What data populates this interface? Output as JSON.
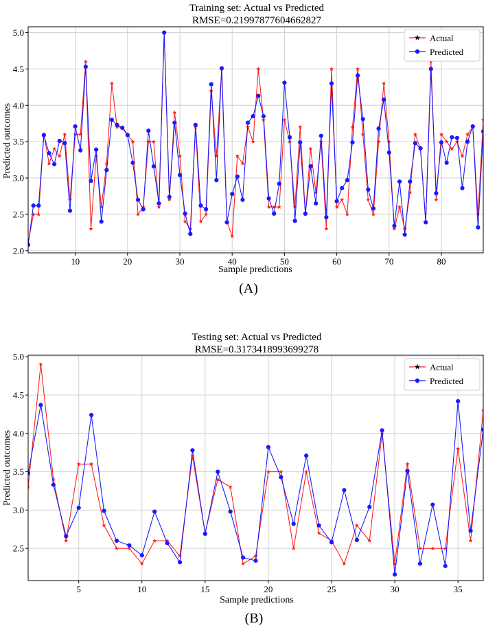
{
  "colors": {
    "actual": "#ff2020",
    "predicted": "#1a1aff",
    "grid": "#d0d0d0"
  },
  "chart_data": [
    {
      "type": "line",
      "title": "Training set: Actual vs Predicted",
      "subtitle": "RMSE=0.21997877604662827",
      "panel_label": "(A)",
      "xlabel": "Sample predictions",
      "ylabel": "Predicted outcomes",
      "xlim": [
        1,
        88
      ],
      "ylim": [
        1.97,
        5.08
      ],
      "xticks": [
        10,
        20,
        30,
        40,
        50,
        60,
        70,
        80
      ],
      "yticks": [
        2.0,
        2.5,
        3.0,
        3.5,
        4.0,
        4.5,
        5.0
      ],
      "grid": true,
      "legend_position": "top-right",
      "x": [
        1,
        2,
        3,
        4,
        5,
        6,
        7,
        8,
        9,
        10,
        11,
        12,
        13,
        14,
        15,
        16,
        17,
        18,
        19,
        20,
        21,
        22,
        23,
        24,
        25,
        26,
        27,
        28,
        29,
        30,
        31,
        32,
        33,
        34,
        35,
        36,
        37,
        38,
        39,
        40,
        41,
        42,
        43,
        44,
        45,
        46,
        47,
        48,
        49,
        50,
        51,
        52,
        53,
        54,
        55,
        56,
        57,
        58,
        59,
        60,
        61,
        62,
        63,
        64,
        65,
        66,
        67,
        68,
        69,
        70,
        71,
        72,
        73,
        74,
        75,
        76,
        77,
        78,
        79,
        80,
        81,
        82,
        83,
        84,
        85,
        86,
        87,
        88
      ],
      "series": [
        {
          "name": "Actual",
          "marker": "star",
          "values": [
            2.1,
            2.5,
            2.5,
            3.6,
            3.2,
            3.4,
            3.3,
            3.6,
            2.7,
            3.6,
            3.6,
            4.6,
            2.3,
            3.3,
            2.6,
            3.2,
            4.3,
            3.7,
            3.7,
            3.6,
            3.5,
            2.5,
            2.6,
            3.5,
            3.5,
            2.6,
            5.0,
            2.7,
            3.9,
            3.3,
            2.4,
            2.3,
            3.7,
            2.4,
            2.5,
            4.2,
            3.3,
            4.5,
            2.4,
            2.2,
            3.3,
            3.2,
            3.7,
            3.5,
            4.5,
            3.8,
            2.6,
            2.6,
            2.6,
            3.8,
            3.5,
            2.6,
            3.7,
            2.5,
            3.4,
            2.8,
            3.5,
            2.3,
            4.5,
            2.6,
            2.7,
            2.5,
            3.7,
            4.5,
            3.6,
            2.7,
            2.5,
            3.5,
            4.3,
            3.5,
            2.3,
            2.6,
            2.3,
            2.8,
            3.6,
            3.4,
            2.4,
            4.6,
            2.7,
            3.6,
            3.5,
            3.4,
            3.5,
            3.3,
            3.6,
            3.7,
            2.5,
            3.8
          ]
        },
        {
          "name": "Predicted",
          "marker": "circle",
          "values": [
            2.08,
            2.62,
            2.62,
            3.59,
            3.34,
            3.19,
            3.51,
            3.48,
            2.55,
            3.71,
            3.38,
            4.53,
            2.96,
            3.39,
            2.4,
            3.11,
            3.8,
            3.73,
            3.69,
            3.59,
            3.21,
            2.7,
            2.57,
            3.65,
            3.16,
            2.65,
            5.0,
            2.74,
            3.76,
            3.04,
            2.51,
            2.23,
            3.73,
            2.62,
            2.57,
            4.29,
            2.97,
            4.51,
            2.39,
            2.78,
            3.02,
            2.7,
            3.76,
            3.85,
            4.13,
            3.85,
            2.72,
            2.51,
            2.92,
            4.31,
            3.56,
            2.41,
            3.49,
            2.51,
            3.16,
            2.65,
            3.58,
            2.46,
            4.3,
            2.68,
            2.86,
            2.97,
            3.49,
            4.41,
            3.81,
            2.84,
            2.58,
            3.68,
            4.08,
            3.35,
            2.34,
            2.95,
            2.22,
            2.95,
            3.48,
            3.41,
            2.39,
            4.5,
            2.79,
            3.49,
            3.21,
            3.56,
            3.55,
            2.86,
            3.5,
            3.71,
            2.32,
            3.64
          ]
        }
      ]
    },
    {
      "type": "line",
      "title": "Testing set: Actual vs Predicted",
      "subtitle": "RMSE=0.3173418993699278",
      "panel_label": "(B)",
      "xlabel": "Sample predictions",
      "ylabel": "Predicted outcomes",
      "xlim": [
        1,
        37
      ],
      "ylim": [
        2.08,
        5.02
      ],
      "xticks": [
        5,
        10,
        15,
        20,
        25,
        30,
        35
      ],
      "yticks": [
        2.5,
        3.0,
        3.5,
        4.0,
        4.5,
        5.0
      ],
      "grid": true,
      "legend_position": "top-right",
      "x": [
        1,
        2,
        3,
        4,
        5,
        6,
        7,
        8,
        9,
        10,
        11,
        12,
        13,
        14,
        15,
        16,
        17,
        18,
        19,
        20,
        21,
        22,
        23,
        24,
        25,
        26,
        27,
        28,
        29,
        30,
        31,
        32,
        33,
        34,
        35,
        36,
        37
      ],
      "series": [
        {
          "name": "Actual",
          "marker": "star",
          "values": [
            3.3,
            4.9,
            3.4,
            2.6,
            3.6,
            3.6,
            2.8,
            2.5,
            2.5,
            2.3,
            2.6,
            2.6,
            2.4,
            3.7,
            2.7,
            3.4,
            3.3,
            2.3,
            2.4,
            3.5,
            3.5,
            2.5,
            3.5,
            2.7,
            2.6,
            2.3,
            2.8,
            2.6,
            4.0,
            2.3,
            3.6,
            2.5,
            2.5,
            2.5,
            3.8,
            2.6,
            4.3
          ]
        },
        {
          "name": "Predicted",
          "marker": "circle",
          "values": [
            3.48,
            4.37,
            3.33,
            2.66,
            3.03,
            4.24,
            2.99,
            2.6,
            2.54,
            2.41,
            2.98,
            2.57,
            2.32,
            3.78,
            2.69,
            3.5,
            2.98,
            2.38,
            2.34,
            3.82,
            3.43,
            2.82,
            3.71,
            2.8,
            2.58,
            3.26,
            2.61,
            3.04,
            4.04,
            2.16,
            3.51,
            2.3,
            3.07,
            2.27,
            4.42,
            2.73,
            4.05
          ]
        }
      ]
    }
  ]
}
